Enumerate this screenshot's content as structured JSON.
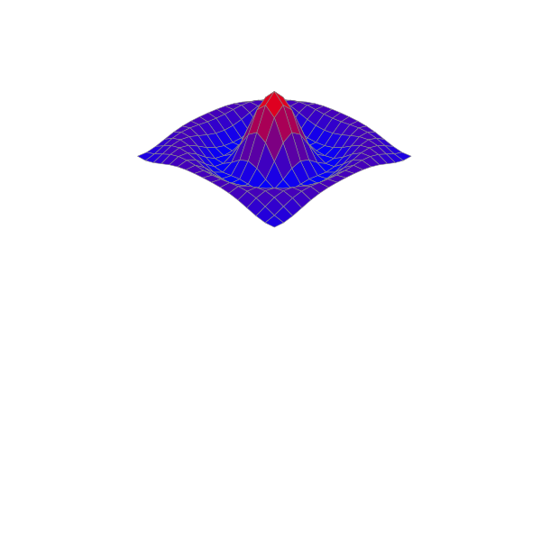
{
  "chart_data": {
    "type": "surface",
    "x": [
      -8,
      -7,
      -6,
      -5,
      -4,
      -3,
      -2,
      -1,
      0,
      1,
      2,
      3,
      4,
      5,
      6,
      7,
      8
    ],
    "y": [
      -8,
      -7,
      -6,
      -5,
      -4,
      -3,
      -2,
      -1,
      0,
      1,
      2,
      3,
      4,
      5,
      6,
      7,
      8
    ],
    "z": [
      [
        -0.084,
        -0.088,
        -0.054,
        -0.001,
        0.052,
        0.09,
        0.112,
        0.121,
        0.124,
        0.121,
        0.112,
        0.09,
        0.052,
        -0.001,
        -0.054,
        -0.088,
        -0.084
      ],
      [
        -0.088,
        -0.046,
        0.022,
        0.085,
        0.121,
        0.128,
        0.115,
        0.1,
        0.094,
        0.1,
        0.115,
        0.128,
        0.121,
        0.085,
        0.022,
        -0.046,
        -0.088
      ],
      [
        -0.054,
        0.022,
        0.095,
        0.128,
        0.111,
        0.061,
        0.007,
        -0.033,
        -0.047,
        -0.033,
        0.007,
        0.061,
        0.111,
        0.128,
        0.095,
        0.022,
        -0.054
      ],
      [
        -0.001,
        0.085,
        0.128,
        0.1,
        0.019,
        -0.075,
        -0.145,
        -0.182,
        -0.192,
        -0.182,
        -0.145,
        -0.075,
        0.019,
        0.1,
        0.128,
        0.085,
        -0.001
      ],
      [
        0.052,
        0.121,
        0.111,
        0.019,
        -0.104,
        -0.192,
        -0.217,
        -0.202,
        -0.189,
        -0.202,
        -0.217,
        -0.192,
        -0.104,
        0.019,
        0.111,
        0.121,
        0.052
      ],
      [
        0.09,
        0.128,
        0.061,
        -0.075,
        -0.192,
        -0.21,
        -0.124,
        -0.007,
        0.047,
        -0.007,
        -0.124,
        -0.21,
        -0.192,
        -0.075,
        0.061,
        0.128,
        0.09
      ],
      [
        0.112,
        0.115,
        0.007,
        -0.145,
        -0.217,
        -0.124,
        0.109,
        0.352,
        0.455,
        0.352,
        0.109,
        -0.124,
        -0.217,
        -0.145,
        0.007,
        0.115,
        0.112
      ],
      [
        0.121,
        0.1,
        -0.033,
        -0.182,
        -0.202,
        -0.007,
        0.352,
        0.698,
        0.841,
        0.698,
        0.352,
        -0.007,
        -0.202,
        -0.182,
        -0.033,
        0.1,
        0.121
      ],
      [
        0.124,
        0.094,
        -0.047,
        -0.192,
        -0.189,
        0.047,
        0.455,
        0.841,
        1.0,
        0.841,
        0.455,
        0.047,
        -0.189,
        -0.192,
        -0.047,
        0.094,
        0.124
      ],
      [
        0.121,
        0.1,
        -0.033,
        -0.182,
        -0.202,
        -0.007,
        0.352,
        0.698,
        0.841,
        0.698,
        0.352,
        -0.007,
        -0.202,
        -0.182,
        -0.033,
        0.1,
        0.121
      ],
      [
        0.112,
        0.115,
        0.007,
        -0.145,
        -0.217,
        -0.124,
        0.109,
        0.352,
        0.455,
        0.352,
        0.109,
        -0.124,
        -0.217,
        -0.145,
        0.007,
        0.115,
        0.112
      ],
      [
        0.09,
        0.128,
        0.061,
        -0.075,
        -0.192,
        -0.21,
        -0.124,
        -0.007,
        0.047,
        -0.007,
        -0.124,
        -0.21,
        -0.192,
        -0.075,
        0.061,
        0.128,
        0.09
      ],
      [
        0.052,
        0.121,
        0.111,
        0.019,
        -0.104,
        -0.192,
        -0.217,
        -0.202,
        -0.189,
        -0.202,
        -0.217,
        -0.192,
        -0.104,
        0.019,
        0.111,
        0.121,
        0.052
      ],
      [
        -0.001,
        0.085,
        0.128,
        0.1,
        0.019,
        -0.075,
        -0.145,
        -0.182,
        -0.192,
        -0.182,
        -0.145,
        -0.075,
        0.019,
        0.1,
        0.128,
        0.085,
        -0.001
      ],
      [
        -0.054,
        0.022,
        0.095,
        0.128,
        0.111,
        0.061,
        0.007,
        -0.033,
        -0.047,
        -0.033,
        0.007,
        0.061,
        0.111,
        0.128,
        0.095,
        0.022,
        -0.054
      ],
      [
        -0.088,
        -0.046,
        0.022,
        0.085,
        0.121,
        0.128,
        0.115,
        0.1,
        0.094,
        0.1,
        0.115,
        0.128,
        0.121,
        0.085,
        0.022,
        -0.046,
        -0.088
      ],
      [
        -0.084,
        -0.088,
        -0.054,
        -0.001,
        0.052,
        0.09,
        0.112,
        0.121,
        0.124,
        0.121,
        0.112,
        0.09,
        0.052,
        -0.001,
        -0.054,
        -0.088,
        -0.084
      ]
    ],
    "xlim": [
      -8,
      8
    ],
    "ylim": [
      -8,
      8
    ],
    "zlim": [
      -0.6,
      1.0
    ],
    "colors": [
      "#0000ff",
      "#ff0000"
    ],
    "tick_labels": false,
    "grid": false
  }
}
